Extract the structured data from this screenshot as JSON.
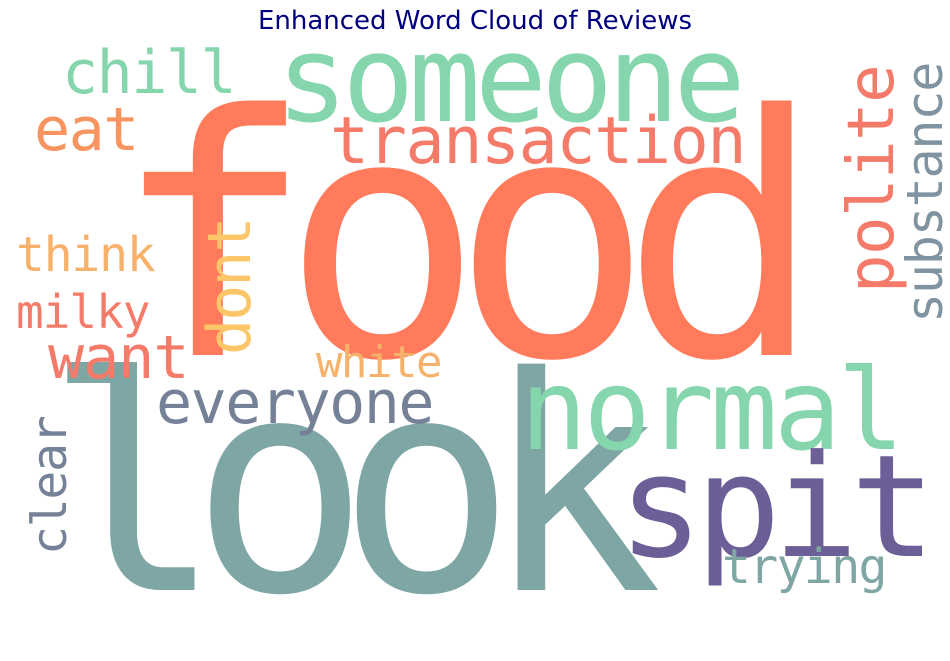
{
  "title": "Enhanced Word Cloud of Reviews",
  "colors": {
    "title": "#00007f",
    "coral": "#ff7b5c",
    "salmon": "#f47a6a",
    "orange": "#f7945f",
    "peach": "#f6b26b",
    "yellow": "#fcc669",
    "mint": "#86d6ad",
    "teal": "#7ea6a4",
    "slate": "#748197",
    "gray_slate": "#7f93a0",
    "purple": "#6c5e96"
  },
  "words": [
    {
      "text": "food",
      "orientation": "horizontal",
      "color": "coral"
    },
    {
      "text": "look",
      "orientation": "horizontal",
      "color": "teal"
    },
    {
      "text": "someone",
      "orientation": "horizontal",
      "color": "mint"
    },
    {
      "text": "normal",
      "orientation": "horizontal",
      "color": "mint"
    },
    {
      "text": "spit",
      "orientation": "horizontal",
      "color": "purple"
    },
    {
      "text": "transaction",
      "orientation": "horizontal",
      "color": "salmon"
    },
    {
      "text": "everyone",
      "orientation": "horizontal",
      "color": "slate"
    },
    {
      "text": "chill",
      "orientation": "horizontal",
      "color": "mint"
    },
    {
      "text": "eat",
      "orientation": "horizontal",
      "color": "orange"
    },
    {
      "text": "want",
      "orientation": "horizontal",
      "color": "salmon"
    },
    {
      "text": "polite",
      "orientation": "vertical",
      "color": "salmon"
    },
    {
      "text": "substance",
      "orientation": "vertical",
      "color": "gray_slate"
    },
    {
      "text": "dont",
      "orientation": "vertical",
      "color": "yellow"
    },
    {
      "text": "think",
      "orientation": "horizontal",
      "color": "peach"
    },
    {
      "text": "milky",
      "orientation": "horizontal",
      "color": "salmon"
    },
    {
      "text": "white",
      "orientation": "horizontal",
      "color": "peach"
    },
    {
      "text": "clear",
      "orientation": "vertical",
      "color": "slate"
    },
    {
      "text": "trying",
      "orientation": "horizontal",
      "color": "teal"
    }
  ]
}
